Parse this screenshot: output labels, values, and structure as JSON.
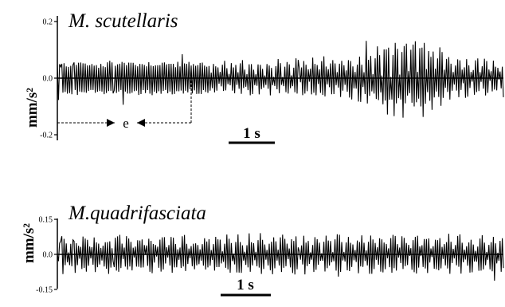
{
  "chart_data": [
    {
      "type": "line",
      "title": "M. scutellaris",
      "xlabel": "",
      "ylabel": "mm/s²",
      "ylim": [
        -0.2,
        0.2
      ],
      "y_ticks": [
        {
          "value": 0.2,
          "label": "0.2"
        },
        {
          "value": 0.0,
          "label": "0.0"
        },
        {
          "value": -0.2,
          "label": "-0.2"
        }
      ],
      "time_scale_bar": {
        "label": "1 s",
        "duration_s": 1
      },
      "annotation": {
        "label": "e",
        "level": -0.16,
        "x_start_s": 0.0,
        "x_end_s": 1.55
      },
      "duration_s": 4.5,
      "series": [
        {
          "envelope": [
            [
              0.0,
              0.055
            ],
            [
              0.2,
              0.06
            ],
            [
              0.4,
              0.055
            ],
            [
              0.6,
              0.065
            ],
            [
              0.8,
              0.06
            ],
            [
              1.0,
              0.062
            ],
            [
              1.2,
              0.058
            ],
            [
              1.4,
              0.06
            ],
            [
              1.55,
              0.06
            ],
            [
              1.8,
              0.065
            ],
            [
              2.0,
              0.07
            ],
            [
              2.2,
              0.07
            ],
            [
              2.5,
              0.08
            ],
            [
              2.8,
              0.08
            ],
            [
              3.0,
              0.09
            ],
            [
              3.2,
              0.11
            ],
            [
              3.35,
              0.14
            ],
            [
              3.5,
              0.15
            ],
            [
              3.6,
              0.16
            ],
            [
              3.7,
              0.15
            ],
            [
              3.8,
              0.12
            ],
            [
              4.0,
              0.09
            ],
            [
              4.2,
              0.08
            ],
            [
              4.5,
              0.07
            ]
          ],
          "burst_rate_hz": 11
        }
      ]
    },
    {
      "type": "line",
      "title": "M.quadrifasciata",
      "xlabel": "",
      "ylabel": "mm/s²",
      "ylim": [
        -0.15,
        0.15
      ],
      "y_ticks": [
        {
          "value": 0.15,
          "label": "0.15"
        },
        {
          "value": 0.0,
          "label": "0.0"
        },
        {
          "value": -0.15,
          "label": "-0.15"
        }
      ],
      "time_scale_bar": {
        "label": "1 s",
        "duration_s": 1
      },
      "duration_s": 4.5,
      "series": [
        {
          "envelope": [
            [
              0.0,
              0.085
            ],
            [
              0.5,
              0.095
            ],
            [
              1.0,
              0.09
            ],
            [
              1.5,
              0.085
            ],
            [
              2.0,
              0.095
            ],
            [
              2.5,
              0.09
            ],
            [
              3.0,
              0.088
            ],
            [
              3.5,
              0.092
            ],
            [
              4.0,
              0.09
            ],
            [
              4.5,
              0.085
            ]
          ],
          "burst_rate_hz": 9
        }
      ]
    }
  ]
}
